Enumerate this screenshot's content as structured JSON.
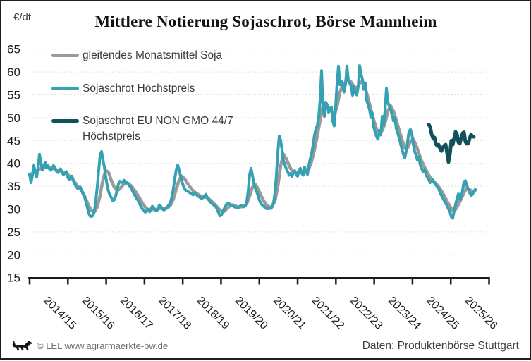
{
  "header": {
    "units_label": "€/dt",
    "title": "Mittlere Notierung Sojaschrot, Börse Mannheim"
  },
  "legend": [
    {
      "label": "gleitendes Monatsmittel Soja",
      "color": "#9a9a9a"
    },
    {
      "label": "Sojaschrot Höchstpreis",
      "color": "#35a1b2"
    },
    {
      "label": "Sojaschrot EU NON GMO 44/7 Höchstpreis",
      "color": "#12505c"
    }
  ],
  "footer": {
    "left": "© LEL www.agrarmaerkte-bw.de",
    "right": "Daten: Produktenbörse Stuttgart",
    "logo": "bw-lion-logo"
  },
  "chart_data": {
    "type": "line",
    "title": "Mittlere Notierung Sojaschrot, Börse Mannheim",
    "ylabel": "€/dt",
    "xlabel": "",
    "ylim": [
      15,
      65
    ],
    "yticks": [
      65,
      60,
      55,
      50,
      45,
      40,
      35,
      30,
      25,
      20,
      15
    ],
    "grid": "horizontal-dotted",
    "gridline_color": "#d9d9d9",
    "axis_color": "#1a1a1a",
    "legend_position": "top-left-inside",
    "x_categories": [
      "2014/15",
      "2015/16",
      "2016/17",
      "2017/18",
      "2018/19",
      "2019/20",
      "2020/21",
      "2021/22",
      "2022/23",
      "2023/24",
      "2024/25",
      "2025/26"
    ],
    "x_range_years": [
      2014.5,
      2026.5
    ],
    "series": [
      {
        "name": "gleitendes Monatsmittel Soja",
        "color": "#9a9a9a",
        "width": 4.5,
        "x_start": 2014.5,
        "x_step": 0.07368,
        "values": [
          37.5,
          37.8,
          38.2,
          38.6,
          38.9,
          39,
          39.2,
          39,
          38.9,
          38.8,
          38.4,
          38.3,
          38,
          37.8,
          37.3,
          36.8,
          35.9,
          35,
          34.4,
          33.5,
          32.1,
          30.7,
          29.6,
          29.4,
          30.5,
          33,
          36.5,
          38.5,
          38,
          36.2,
          34.8,
          34,
          34.4,
          35.2,
          35.8,
          35.6,
          35.1,
          34.3,
          33.4,
          32.4,
          31.3,
          30.4,
          29.9,
          29.8,
          30,
          29.9,
          30.1,
          30.2,
          30.1,
          30.3,
          30.9,
          32.2,
          34.4,
          36.4,
          37.2,
          36.6,
          35.6,
          34.7,
          34,
          33.5,
          33.1,
          32.7,
          32.6,
          32.5,
          32,
          31.4,
          30.8,
          30.1,
          29.5,
          29.5,
          30.1,
          30.7,
          30.9,
          30.7,
          30.4,
          30.5,
          30.6,
          31.2,
          32.8,
          34.8,
          35.4,
          34.4,
          33,
          31.8,
          30.9,
          30.4,
          30.6,
          31.8,
          35,
          39.5,
          42,
          41,
          39.5,
          38.4,
          38,
          37.8,
          38.1,
          38.2,
          38.3,
          38.8,
          40.5,
          43,
          46,
          49.5,
          52.5,
          53,
          52.2,
          51.5,
          50.5,
          52.5,
          55.5,
          57.2,
          57.8,
          58.3,
          57.8,
          56.8,
          56.4,
          57.5,
          58,
          56.5,
          54.2,
          51.8,
          49.5,
          47.5,
          46.5,
          47.2,
          48.8,
          51.5,
          52.6,
          51.4,
          49.4,
          47.3,
          45.2,
          43.3,
          43.4,
          44.8,
          45.3,
          44,
          42.2,
          40.5,
          39.2,
          38,
          36.9,
          36.2,
          35.6,
          34.9,
          34,
          32.9,
          31.7,
          30.6,
          29.7,
          29.9,
          31,
          32.2,
          33.6,
          34.6,
          34.3,
          33.6,
          34.1
        ]
      },
      {
        "name": "Sojaschrot Höchstpreis",
        "color": "#35a1b2",
        "width": 4,
        "x_start": 2014.5,
        "x_step": 0.03684,
        "values": [
          37.6,
          35.8,
          37.4,
          39.5,
          38,
          37,
          39.2,
          42,
          40.2,
          38.5,
          39.3,
          40.2,
          39,
          39.6,
          38.8,
          38.5,
          39,
          39.5,
          39,
          38.3,
          38,
          38.5,
          38.8,
          38,
          37.5,
          37.9,
          38.2,
          37,
          36.5,
          37,
          37.2,
          36.2,
          35.5,
          34.9,
          34.5,
          34.7,
          34.8,
          33.9,
          33.2,
          32.6,
          31.5,
          30.3,
          29,
          28.4,
          28.4,
          28.6,
          29.8,
          32,
          35,
          38.5,
          41.8,
          42.6,
          40.8,
          39.2,
          37,
          35.2,
          33.8,
          33,
          32.5,
          31.8,
          32,
          32.8,
          34,
          35.6,
          36.1,
          35.8,
          36,
          36.3,
          35.7,
          35.9,
          35.4,
          35,
          34.7,
          33.9,
          33.4,
          32.8,
          32.3,
          31.8,
          31.2,
          30.5,
          30,
          29.7,
          29.3,
          29.6,
          29.9,
          29.4,
          30,
          30.6,
          30.3,
          29.8,
          29.6,
          30,
          30.9,
          30.6,
          30.1,
          29.8,
          29.9,
          30.2,
          30.6,
          31,
          31.6,
          32.8,
          34.6,
          36.8,
          38.6,
          39.6,
          38.6,
          37.2,
          36,
          35.1,
          34.4,
          34,
          33.9,
          33.7,
          33.5,
          33.3,
          33.1,
          33.4,
          33.3,
          32.9,
          32.7,
          32.5,
          32.3,
          32.5,
          32.9,
          33.2,
          32.5,
          32,
          31.6,
          31.3,
          31,
          30.8,
          30.5,
          30,
          29.2,
          28.5,
          28.7,
          29.4,
          30.1,
          30.7,
          31.2,
          31.2,
          31.1,
          30.9,
          30.8,
          30.5,
          30.4,
          30.3,
          30.3,
          30.6,
          30.8,
          30.7,
          30.5,
          30.7,
          31.7,
          34,
          37.5,
          38.9,
          37.4,
          35.6,
          34.6,
          33.8,
          32.9,
          31.9,
          31.2,
          30.9,
          30.6,
          30.3,
          30.1,
          30.1,
          30.2,
          30.1,
          30.5,
          31.5,
          33.5,
          37.5,
          42.5,
          46,
          45,
          43,
          40.5,
          39.7,
          38.8,
          38.2,
          37.4,
          37.8,
          37.1,
          38,
          38.4,
          37.6,
          37.2,
          38.6,
          38.9,
          37.8,
          37.4,
          39.2,
          38.3,
          37.6,
          39.5,
          41,
          42.2,
          44,
          46.2,
          47.5,
          48.3,
          50.2,
          54,
          60.3,
          52.5,
          50.3,
          53.4,
          52.8,
          51.2,
          51.8,
          52.3,
          49.2,
          48.2,
          52.5,
          57.5,
          61.3,
          57.2,
          58,
          57,
          55.6,
          57.4,
          61.3,
          58.2,
          57.6,
          56.8,
          54.9,
          56.9,
          55.3,
          55,
          56.8,
          61.4,
          59.5,
          58.4,
          56.2,
          57.6,
          53.8,
          52.8,
          51.8,
          50,
          51,
          47.9,
          46.8,
          45.8,
          45.3,
          47.2,
          46.2,
          50.3,
          48.5,
          51.5,
          56.4,
          53.4,
          52.6,
          51.8,
          50.5,
          49.3,
          50,
          47.6,
          46.6,
          45.6,
          44.3,
          43.1,
          42,
          41.2,
          42.6,
          44.8,
          47,
          47.4,
          46.4,
          44.2,
          42.6,
          41.8,
          40.7,
          41.5,
          39.6,
          38.9,
          38.1,
          38.7,
          37.6,
          36.9,
          36.5,
          35.8,
          36,
          36.4,
          35.7,
          35.3,
          34.9,
          34.5,
          33.6,
          33,
          32.4,
          31.8,
          31.2,
          30.8,
          30,
          29.4,
          28.3,
          28,
          29.6,
          31,
          32.2,
          33.3,
          32.1,
          32.7,
          34.1,
          36,
          36.2,
          35.2,
          34.3,
          33.6,
          33,
          33.2,
          33.9,
          34.3
        ]
      },
      {
        "name": "Sojaschrot EU NON GMO 44/7 Höchstpreis",
        "color": "#12505c",
        "width": 5,
        "x_start": 2024.925,
        "x_step": 0.03684,
        "values": [
          48.5,
          48,
          46.4,
          45.5,
          45.7,
          44.3,
          43.8,
          44.1,
          43.2,
          42.7,
          43.5,
          43.9,
          44.1,
          42.2,
          40.3,
          42,
          45,
          44.1,
          45.5,
          46.9,
          46.4,
          44.6,
          44.3,
          45.5,
          46.6,
          46.8,
          44.7,
          44.3,
          44.4,
          45.5,
          46.3,
          45.9,
          45.8
        ]
      }
    ]
  }
}
